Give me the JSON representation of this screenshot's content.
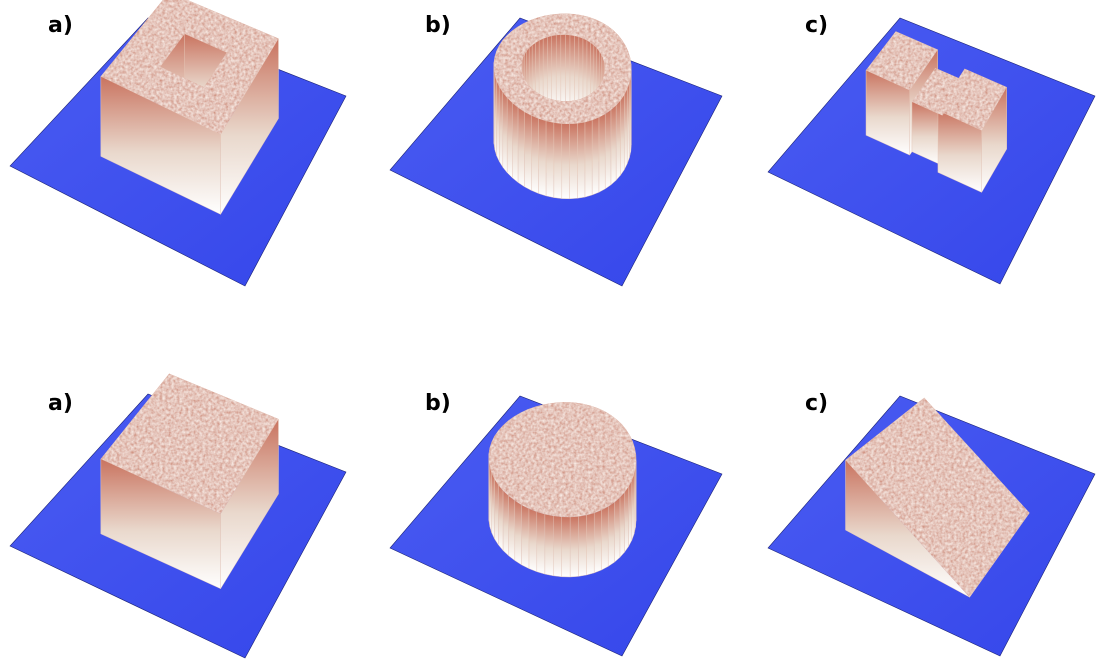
{
  "panels": [
    {
      "label": "a)"
    },
    {
      "label": "b)"
    },
    {
      "label": "c)"
    },
    {
      "label": "a)"
    },
    {
      "label": "b)"
    },
    {
      "label": "c)"
    }
  ]
}
